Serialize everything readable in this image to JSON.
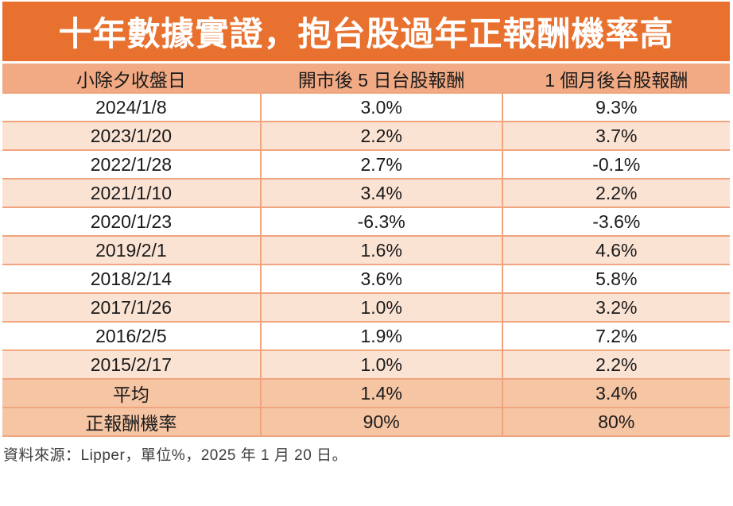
{
  "chart_data": {
    "type": "table",
    "title": "十年數據實證，抱台股過年正報酬機率高",
    "columns": [
      "小除夕收盤日",
      "開市後 5 日台股報酬",
      "1 個月後台股報酬"
    ],
    "rows": [
      [
        "2024/1/8",
        "3.0%",
        "9.3%"
      ],
      [
        "2023/1/20",
        "2.2%",
        "3.7%"
      ],
      [
        "2022/1/28",
        "2.7%",
        "-0.1%"
      ],
      [
        "2021/1/10",
        "3.4%",
        "2.2%"
      ],
      [
        "2020/1/23",
        "-6.3%",
        "-3.6%"
      ],
      [
        "2019/2/1",
        "1.6%",
        "4.6%"
      ],
      [
        "2018/2/14",
        "3.6%",
        "5.8%"
      ],
      [
        "2017/1/26",
        "1.0%",
        "3.2%"
      ],
      [
        "2016/2/5",
        "1.9%",
        "7.2%"
      ],
      [
        "2015/2/17",
        "1.0%",
        "2.2%"
      ]
    ],
    "summary_rows": [
      [
        "平均",
        "1.4%",
        "3.4%"
      ],
      [
        "正報酬機率",
        "90%",
        "80%"
      ]
    ],
    "footnote": "資料來源：Lipper，單位%，2025 年 1 月 20 日。"
  },
  "colors": {
    "title_bg": "#E8712F",
    "title_text": "#FFFFFF",
    "header_bg": "#F2AA84",
    "row_alt_bg": "#FBE3D4",
    "row_white_bg": "#FFFFFF",
    "summary_bg": "#F5C5A4",
    "border": "#F0A57E",
    "cell_text": "#1A1A1A",
    "footnote_text": "#3D3D3D"
  }
}
